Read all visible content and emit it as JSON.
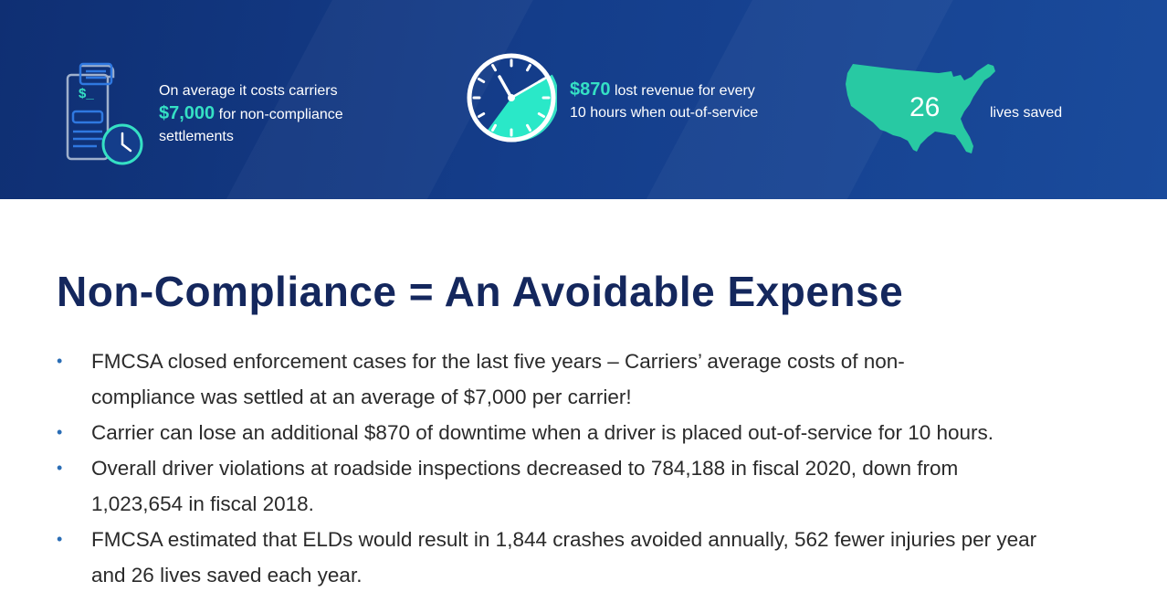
{
  "banner": {
    "stat1": {
      "line1": "On average it costs carriers",
      "amount": "$7,000",
      "line2": "for non-compliance",
      "line3": "settlements",
      "icon": "receipt-clock-icon"
    },
    "stat2": {
      "amount": "$870",
      "line1": "lost revenue for every",
      "line2": "10 hours when out-of-service",
      "icon": "clock-icon"
    },
    "stat3": {
      "number": "26",
      "label": "lives saved",
      "icon": "usa-map-icon"
    }
  },
  "title": "Non-Compliance = An Avoidable Expense",
  "bullets": [
    {
      "line1": "FMCSA closed enforcement cases for the last five years – Carriers’ average costs of non-",
      "line2": "compliance was settled at an average of $7,000 per carrier!"
    },
    {
      "line1": "Carrier can lose an additional $870 of downtime when a driver is placed out-of-service for 10 hours.",
      "line2": ""
    },
    {
      "line1": "Overall driver violations at roadside inspections decreased to 784,188 in fiscal 2020, down from",
      "line2": "1,023,654 in fiscal 2018."
    },
    {
      "line1": "FMCSA estimated that ELDs would result in 1,844 crashes avoided annually, 562 fewer injuries per year",
      "line2": "and 26 lives saved each year."
    }
  ],
  "colors": {
    "banner": "#143d8a",
    "accent": "#35e0c4",
    "title": "#14275d",
    "bullet": "#2a6db5"
  }
}
